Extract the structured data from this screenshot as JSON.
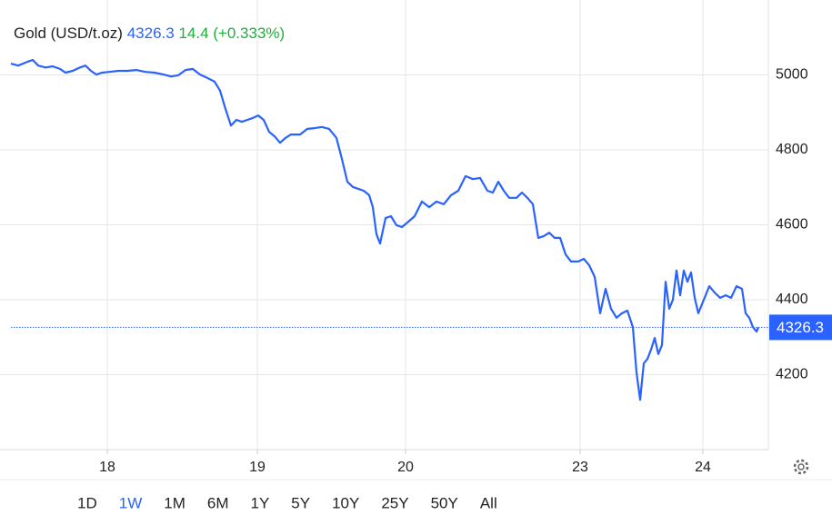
{
  "chart_data": {
    "type": "line",
    "title": "Gold (USD/t.oz)",
    "change": "14.4 (+0.333%)",
    "x": [
      0,
      4,
      9,
      12,
      15,
      19,
      23,
      27,
      30,
      34,
      38,
      41,
      44,
      47,
      50,
      54,
      59,
      64,
      69,
      74,
      79,
      84,
      88,
      92,
      96,
      100,
      104,
      108,
      112,
      115,
      118,
      121,
      124,
      127,
      130,
      133,
      136,
      139,
      142,
      145,
      148,
      151,
      154,
      159,
      163,
      167,
      171,
      175,
      179,
      182,
      185,
      188,
      191,
      194,
      197,
      199,
      201,
      203,
      206,
      209,
      212,
      215,
      218,
      222,
      226,
      230,
      234,
      238,
      242,
      246,
      250,
      254,
      258,
      262,
      265,
      268,
      271,
      274,
      278,
      281,
      284,
      287,
      290,
      293,
      296,
      299,
      302,
      305,
      308,
      312,
      315,
      318,
      321,
      324,
      327,
      330,
      333,
      336,
      339,
      342,
      344,
      346,
      348,
      350,
      352,
      354,
      356,
      358,
      360,
      362,
      364,
      366,
      368,
      370,
      372,
      374,
      376,
      378,
      380,
      382,
      384,
      387,
      390,
      393,
      396,
      399,
      402,
      404,
      406,
      408,
      410,
      411
    ],
    "series": [
      {
        "color": "#2962ff",
        "values": [
          5030,
          5025,
          5035,
          5040,
          5025,
          5020,
          5023,
          5016,
          5006,
          5011,
          5020,
          5025,
          5011,
          5001,
          5006,
          5008,
          5011,
          5011,
          5013,
          5008,
          5006,
          5001,
          4996,
          4999,
          5013,
          5016,
          5001,
          4992,
          4982,
          4958,
          4909,
          4865,
          4880,
          4875,
          4880,
          4885,
          4892,
          4880,
          4848,
          4836,
          4819,
          4832,
          4841,
          4841,
          4856,
          4858,
          4861,
          4856,
          4832,
          4776,
          4715,
          4701,
          4696,
          4691,
          4679,
          4647,
          4575,
          4550,
          4618,
          4623,
          4599,
          4594,
          4606,
          4623,
          4662,
          4647,
          4662,
          4655,
          4679,
          4691,
          4730,
          4722,
          4725,
          4691,
          4686,
          4715,
          4691,
          4672,
          4672,
          4686,
          4672,
          4655,
          4565,
          4570,
          4579,
          4565,
          4565,
          4521,
          4502,
          4502,
          4509,
          4492,
          4461,
          4364,
          4429,
          4376,
          4352,
          4364,
          4371,
          4327,
          4206,
          4133,
          4230,
          4242,
          4267,
          4298,
          4255,
          4279,
          4448,
          4376,
          4400,
          4478,
          4412,
          4478,
          4448,
          4473,
          4405,
          4364,
          4388,
          4412,
          4436,
          4419,
          4405,
          4412,
          4405,
          4436,
          4429,
          4364,
          4352,
          4327,
          4315,
          4326.3
        ]
      }
    ],
    "xlim": [
      0,
      416.5
    ],
    "xticks": [
      {
        "value": 53,
        "label": "18"
      },
      {
        "value": 135.5,
        "label": "19"
      },
      {
        "value": 217,
        "label": "20"
      },
      {
        "value": 313,
        "label": "23"
      },
      {
        "value": 380.5,
        "label": "24"
      }
    ],
    "ylim": [
      4000,
      5200
    ],
    "yticks": [
      4200,
      4400,
      4600,
      4800,
      5000
    ],
    "grid": true,
    "change_color": "#1fae3c",
    "ranges": [
      "1D",
      "1W",
      "1M",
      "6M",
      "1Y",
      "5Y",
      "10Y",
      "25Y",
      "50Y",
      "All"
    ],
    "active_range_index": 1
  }
}
